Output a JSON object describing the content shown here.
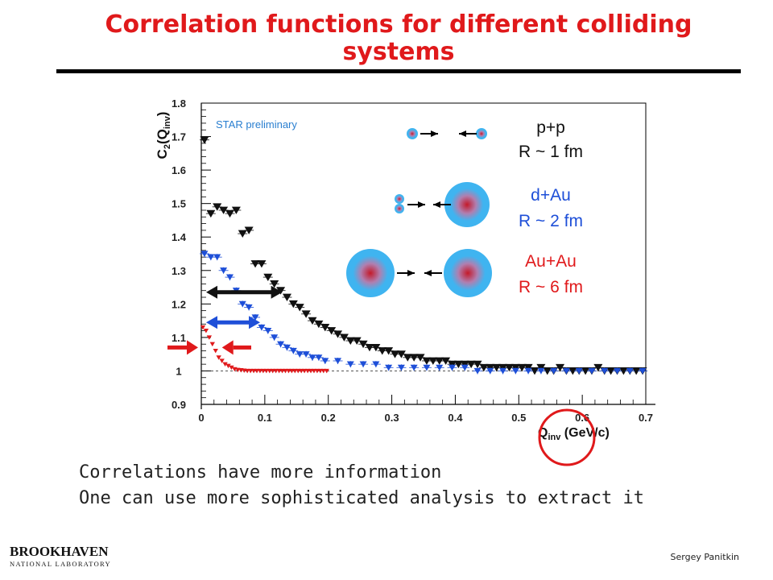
{
  "slide": {
    "title_line1": "Correlation functions for different colliding",
    "title_line2": "systems",
    "text_line1": "Correlations have more information",
    "text_line2": "One can use more sophisticated analysis to extract it",
    "author": "Sergey  Panitkin",
    "logo_name": "BROOKHAVEN",
    "logo_sub": "NATIONAL LABORATORY"
  },
  "colors": {
    "title": "#e0191b",
    "pp": "#111111",
    "dau": "#1e4fd8",
    "auau": "#e0191b",
    "nucleus": "#3fb4f0",
    "core": "#c41a2a"
  },
  "chart_data": {
    "type": "scatter",
    "title": "",
    "annotation": "STAR preliminary",
    "xlabel_main": "Q",
    "xlabel_sub": "inv",
    "xlabel_unit": " (GeV/c)",
    "ylabel_main": "C",
    "ylabel_sub1": "2",
    "ylabel_mid": "(Q",
    "ylabel_sub2": "inv",
    "ylabel_end": ")",
    "xlim": [
      0,
      0.7
    ],
    "ylim": [
      0.9,
      1.8
    ],
    "xticks": [
      "0",
      "0.1",
      "0.2",
      "0.3",
      "0.4",
      "0.5",
      "0.6",
      "0.7"
    ],
    "yticks": [
      "0.9",
      "1",
      "1.1",
      "1.2",
      "1.3",
      "1.4",
      "1.5",
      "1.6",
      "1.7",
      "1.8"
    ],
    "reference_line": 1.0,
    "series": [
      {
        "name": "p+p",
        "marker": "down-triangle",
        "label_name": "p+p",
        "label_radius": "R ~ 1 fm",
        "points": [
          [
            0.005,
            1.69
          ],
          [
            0.015,
            1.47
          ],
          [
            0.025,
            1.49
          ],
          [
            0.035,
            1.48
          ],
          [
            0.045,
            1.47
          ],
          [
            0.055,
            1.48
          ],
          [
            0.065,
            1.41
          ],
          [
            0.075,
            1.42
          ],
          [
            0.085,
            1.32
          ],
          [
            0.095,
            1.32
          ],
          [
            0.105,
            1.28
          ],
          [
            0.115,
            1.26
          ],
          [
            0.125,
            1.24
          ],
          [
            0.135,
            1.22
          ],
          [
            0.145,
            1.2
          ],
          [
            0.155,
            1.19
          ],
          [
            0.165,
            1.17
          ],
          [
            0.175,
            1.15
          ],
          [
            0.185,
            1.14
          ],
          [
            0.195,
            1.13
          ],
          [
            0.205,
            1.12
          ],
          [
            0.215,
            1.11
          ],
          [
            0.225,
            1.1
          ],
          [
            0.235,
            1.09
          ],
          [
            0.245,
            1.09
          ],
          [
            0.255,
            1.08
          ],
          [
            0.265,
            1.07
          ],
          [
            0.275,
            1.07
          ],
          [
            0.285,
            1.06
          ],
          [
            0.295,
            1.06
          ],
          [
            0.305,
            1.05
          ],
          [
            0.315,
            1.05
          ],
          [
            0.325,
            1.04
          ],
          [
            0.335,
            1.04
          ],
          [
            0.345,
            1.04
          ],
          [
            0.355,
            1.03
          ],
          [
            0.365,
            1.03
          ],
          [
            0.375,
            1.03
          ],
          [
            0.385,
            1.03
          ],
          [
            0.395,
            1.02
          ],
          [
            0.405,
            1.02
          ],
          [
            0.415,
            1.02
          ],
          [
            0.425,
            1.02
          ],
          [
            0.435,
            1.02
          ],
          [
            0.445,
            1.01
          ],
          [
            0.455,
            1.01
          ],
          [
            0.465,
            1.01
          ],
          [
            0.475,
            1.01
          ],
          [
            0.485,
            1.01
          ],
          [
            0.495,
            1.01
          ],
          [
            0.505,
            1.01
          ],
          [
            0.515,
            1.01
          ],
          [
            0.525,
            1.0
          ],
          [
            0.535,
            1.01
          ],
          [
            0.545,
            1.0
          ],
          [
            0.555,
            1.0
          ],
          [
            0.565,
            1.01
          ],
          [
            0.575,
            1.0
          ],
          [
            0.585,
            1.0
          ],
          [
            0.595,
            1.0
          ],
          [
            0.605,
            1.0
          ],
          [
            0.615,
            1.0
          ],
          [
            0.625,
            1.01
          ],
          [
            0.635,
            1.0
          ],
          [
            0.645,
            1.0
          ],
          [
            0.655,
            1.0
          ],
          [
            0.665,
            1.0
          ],
          [
            0.675,
            1.0
          ],
          [
            0.685,
            1.0
          ],
          [
            0.695,
            1.0
          ]
        ]
      },
      {
        "name": "d+Au",
        "marker": "down-triangle",
        "label_name": "d+Au",
        "label_radius": "R ~ 2 fm",
        "points": [
          [
            0.005,
            1.35
          ],
          [
            0.015,
            1.34
          ],
          [
            0.025,
            1.34
          ],
          [
            0.035,
            1.3
          ],
          [
            0.045,
            1.28
          ],
          [
            0.055,
            1.24
          ],
          [
            0.065,
            1.2
          ],
          [
            0.075,
            1.19
          ],
          [
            0.085,
            1.16
          ],
          [
            0.095,
            1.13
          ],
          [
            0.105,
            1.12
          ],
          [
            0.115,
            1.1
          ],
          [
            0.125,
            1.08
          ],
          [
            0.135,
            1.07
          ],
          [
            0.145,
            1.06
          ],
          [
            0.155,
            1.05
          ],
          [
            0.165,
            1.05
          ],
          [
            0.175,
            1.04
          ],
          [
            0.185,
            1.04
          ],
          [
            0.195,
            1.03
          ],
          [
            0.215,
            1.03
          ],
          [
            0.235,
            1.02
          ],
          [
            0.255,
            1.02
          ],
          [
            0.275,
            1.02
          ],
          [
            0.295,
            1.01
          ],
          [
            0.315,
            1.01
          ],
          [
            0.335,
            1.01
          ],
          [
            0.355,
            1.01
          ],
          [
            0.375,
            1.01
          ],
          [
            0.395,
            1.01
          ],
          [
            0.415,
            1.01
          ],
          [
            0.435,
            1.0
          ],
          [
            0.455,
            1.0
          ],
          [
            0.475,
            1.0
          ],
          [
            0.495,
            1.0
          ],
          [
            0.515,
            1.0
          ],
          [
            0.535,
            1.0
          ],
          [
            0.555,
            1.0
          ],
          [
            0.575,
            1.0
          ],
          [
            0.595,
            1.0
          ],
          [
            0.615,
            1.0
          ],
          [
            0.635,
            1.0
          ],
          [
            0.655,
            1.0
          ],
          [
            0.675,
            1.0
          ],
          [
            0.695,
            1.0
          ]
        ]
      },
      {
        "name": "Au+Au",
        "marker": "down-triangle",
        "label_name": "Au+Au",
        "label_radius": "R ~ 6 fm",
        "points": [
          [
            0.0025,
            1.13
          ],
          [
            0.0075,
            1.12
          ],
          [
            0.0125,
            1.1
          ],
          [
            0.0175,
            1.08
          ],
          [
            0.0225,
            1.06
          ],
          [
            0.0275,
            1.04
          ],
          [
            0.0325,
            1.03
          ],
          [
            0.0375,
            1.02
          ],
          [
            0.0425,
            1.015
          ],
          [
            0.0475,
            1.01
          ],
          [
            0.0525,
            1.005
          ],
          [
            0.0575,
            1.003
          ],
          [
            0.0625,
            1.002
          ],
          [
            0.0675,
            1.001
          ],
          [
            0.0725,
            1.0
          ],
          [
            0.0775,
            1.0
          ],
          [
            0.0825,
            1.0
          ],
          [
            0.0875,
            1.0
          ],
          [
            0.0925,
            1.0
          ],
          [
            0.0975,
            1.0
          ],
          [
            0.1025,
            1.0
          ],
          [
            0.1075,
            1.0
          ],
          [
            0.1125,
            1.0
          ],
          [
            0.1175,
            1.0
          ],
          [
            0.1225,
            1.0
          ],
          [
            0.1275,
            1.0
          ],
          [
            0.1325,
            1.0
          ],
          [
            0.1375,
            1.0
          ],
          [
            0.1425,
            1.0
          ],
          [
            0.1475,
            1.0
          ],
          [
            0.1525,
            1.0
          ],
          [
            0.1575,
            1.0
          ],
          [
            0.1625,
            1.0
          ],
          [
            0.1675,
            1.0
          ],
          [
            0.1725,
            1.0
          ],
          [
            0.1775,
            1.0
          ],
          [
            0.1825,
            1.0
          ],
          [
            0.1875,
            1.0
          ],
          [
            0.1925,
            1.0
          ],
          [
            0.1975,
            1.0
          ]
        ]
      }
    ],
    "range_arrows": [
      {
        "series": "p+p",
        "y": 1.235,
        "x_from": 0.0,
        "x_to": 0.12
      },
      {
        "series": "d+Au",
        "y": 1.145,
        "x_from": 0.0,
        "x_to": 0.085
      },
      {
        "series": "Au+Au",
        "y": 1.07,
        "x_from": 0.0,
        "x_to": 0.025
      }
    ]
  }
}
